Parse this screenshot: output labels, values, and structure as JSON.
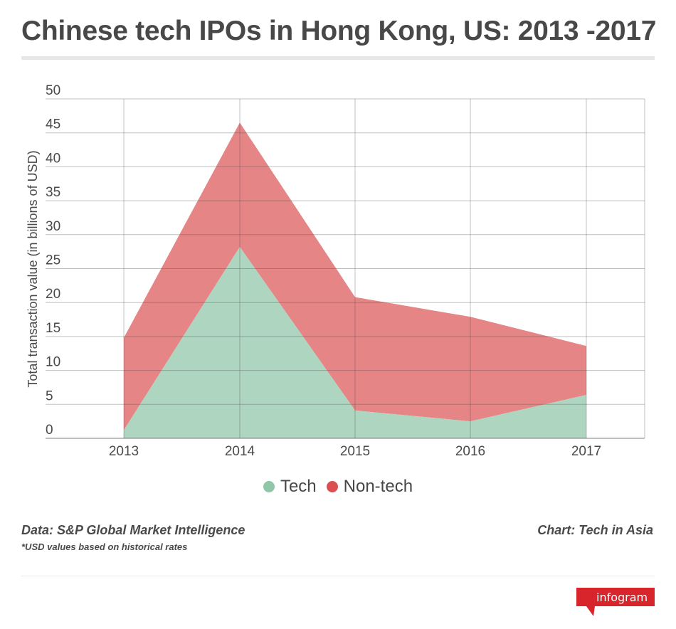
{
  "title": "Chinese tech IPOs in Hong Kong, US: 2013 -2017",
  "chart_data": {
    "type": "area",
    "stacked": true,
    "categories": [
      "2013",
      "2014",
      "2015",
      "2016",
      "2017"
    ],
    "series": [
      {
        "name": "Tech",
        "values": [
          1.2,
          28.2,
          4.1,
          2.5,
          6.4
        ],
        "color": "#aed5bf"
      },
      {
        "name": "Non-tech",
        "values": [
          13.6,
          18.3,
          16.7,
          15.4,
          7.2
        ],
        "color": "#e58586"
      }
    ],
    "ylabel": "Total transaction value (in billions of USD)",
    "ylim": [
      0,
      50
    ],
    "yticks": [
      "0",
      "5",
      "10",
      "15",
      "20",
      "25",
      "30",
      "35",
      "40",
      "45",
      "50"
    ],
    "grid": true,
    "legend_position": "bottom"
  },
  "legend": [
    {
      "label": "Tech",
      "color": "#8fc7a8"
    },
    {
      "label": "Non-tech",
      "color": "#d94f52"
    }
  ],
  "source": "Data: S&P Global Market Intelligence",
  "note": "*USD values based on historical rates",
  "credit": "Chart: Tech in Asia",
  "brand": "infogram"
}
